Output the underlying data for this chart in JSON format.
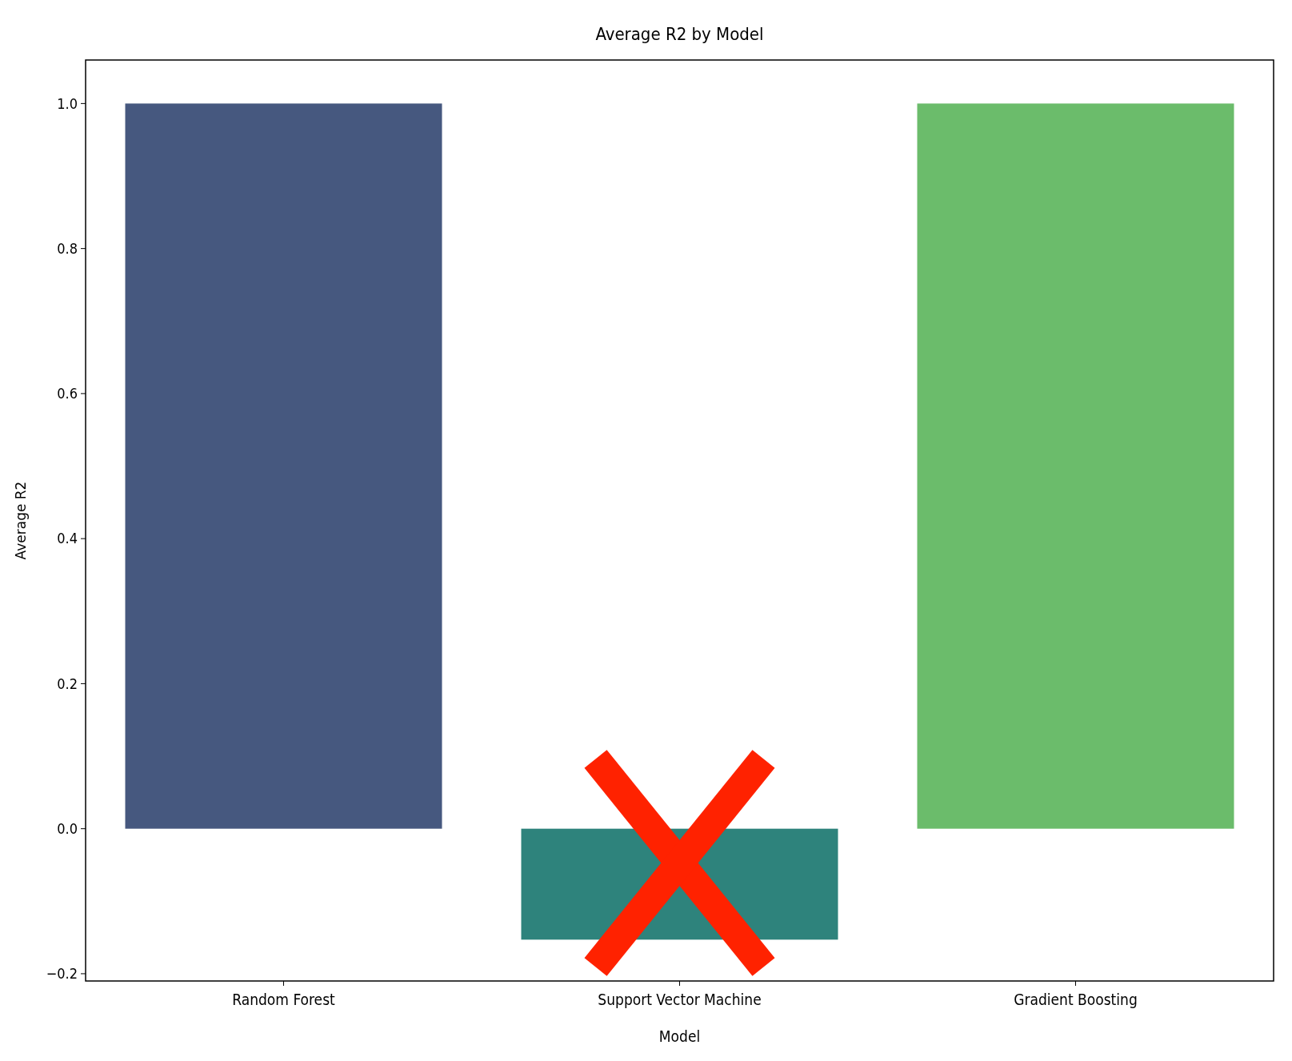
{
  "chart_data": {
    "type": "bar",
    "title": "Average R2 by Model",
    "xlabel": "Model",
    "ylabel": "Average R2",
    "categories": [
      "Random Forest",
      "Support Vector Machine",
      "Gradient Boosting"
    ],
    "values": [
      1.0,
      -0.153,
      1.0
    ],
    "colors": [
      "#46587f",
      "#2e837c",
      "#6bbc6b"
    ],
    "ylim": [
      -0.21,
      1.06
    ],
    "yticks": [
      {
        "value": -0.2,
        "label": "−0.2"
      },
      {
        "value": 0,
        "label": "0.0"
      },
      {
        "value": 0.2,
        "label": "0.2"
      },
      {
        "value": 0.4,
        "label": "0.4"
      },
      {
        "value": 0.6,
        "label": "0.6"
      },
      {
        "value": 0.8,
        "label": "0.8"
      },
      {
        "value": 1,
        "label": "1.0"
      }
    ],
    "grid": false
  }
}
